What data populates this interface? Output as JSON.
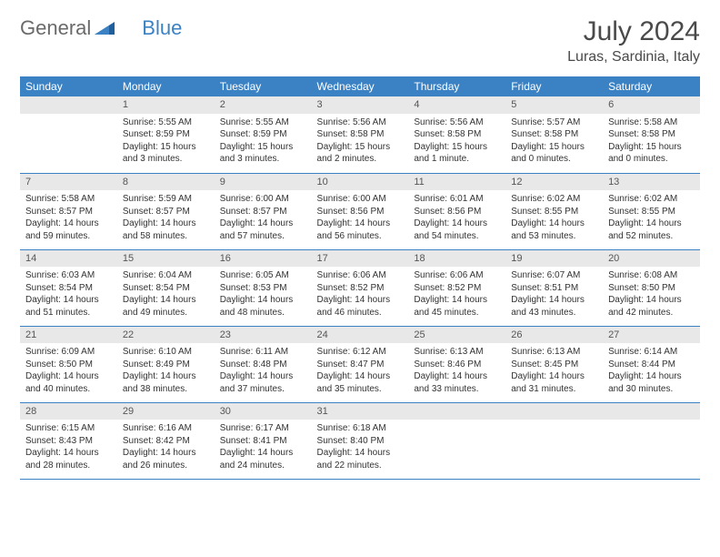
{
  "brand": {
    "part1": "General",
    "part2": "Blue"
  },
  "title": "July 2024",
  "location": "Luras, Sardinia, Italy",
  "colors": {
    "header_bg": "#3b82c4",
    "header_text": "#ffffff",
    "daynum_bg": "#e8e8e8",
    "border": "#3b82c4",
    "text": "#333333",
    "brand_gray": "#6a6a6a",
    "brand_blue": "#3b82c4"
  },
  "weekdays": [
    "Sunday",
    "Monday",
    "Tuesday",
    "Wednesday",
    "Thursday",
    "Friday",
    "Saturday"
  ],
  "weeks": [
    [
      {
        "n": "",
        "lines": []
      },
      {
        "n": "1",
        "lines": [
          "Sunrise: 5:55 AM",
          "Sunset: 8:59 PM",
          "Daylight: 15 hours and 3 minutes."
        ]
      },
      {
        "n": "2",
        "lines": [
          "Sunrise: 5:55 AM",
          "Sunset: 8:59 PM",
          "Daylight: 15 hours and 3 minutes."
        ]
      },
      {
        "n": "3",
        "lines": [
          "Sunrise: 5:56 AM",
          "Sunset: 8:58 PM",
          "Daylight: 15 hours and 2 minutes."
        ]
      },
      {
        "n": "4",
        "lines": [
          "Sunrise: 5:56 AM",
          "Sunset: 8:58 PM",
          "Daylight: 15 hours and 1 minute."
        ]
      },
      {
        "n": "5",
        "lines": [
          "Sunrise: 5:57 AM",
          "Sunset: 8:58 PM",
          "Daylight: 15 hours and 0 minutes."
        ]
      },
      {
        "n": "6",
        "lines": [
          "Sunrise: 5:58 AM",
          "Sunset: 8:58 PM",
          "Daylight: 15 hours and 0 minutes."
        ]
      }
    ],
    [
      {
        "n": "7",
        "lines": [
          "Sunrise: 5:58 AM",
          "Sunset: 8:57 PM",
          "Daylight: 14 hours and 59 minutes."
        ]
      },
      {
        "n": "8",
        "lines": [
          "Sunrise: 5:59 AM",
          "Sunset: 8:57 PM",
          "Daylight: 14 hours and 58 minutes."
        ]
      },
      {
        "n": "9",
        "lines": [
          "Sunrise: 6:00 AM",
          "Sunset: 8:57 PM",
          "Daylight: 14 hours and 57 minutes."
        ]
      },
      {
        "n": "10",
        "lines": [
          "Sunrise: 6:00 AM",
          "Sunset: 8:56 PM",
          "Daylight: 14 hours and 56 minutes."
        ]
      },
      {
        "n": "11",
        "lines": [
          "Sunrise: 6:01 AM",
          "Sunset: 8:56 PM",
          "Daylight: 14 hours and 54 minutes."
        ]
      },
      {
        "n": "12",
        "lines": [
          "Sunrise: 6:02 AM",
          "Sunset: 8:55 PM",
          "Daylight: 14 hours and 53 minutes."
        ]
      },
      {
        "n": "13",
        "lines": [
          "Sunrise: 6:02 AM",
          "Sunset: 8:55 PM",
          "Daylight: 14 hours and 52 minutes."
        ]
      }
    ],
    [
      {
        "n": "14",
        "lines": [
          "Sunrise: 6:03 AM",
          "Sunset: 8:54 PM",
          "Daylight: 14 hours and 51 minutes."
        ]
      },
      {
        "n": "15",
        "lines": [
          "Sunrise: 6:04 AM",
          "Sunset: 8:54 PM",
          "Daylight: 14 hours and 49 minutes."
        ]
      },
      {
        "n": "16",
        "lines": [
          "Sunrise: 6:05 AM",
          "Sunset: 8:53 PM",
          "Daylight: 14 hours and 48 minutes."
        ]
      },
      {
        "n": "17",
        "lines": [
          "Sunrise: 6:06 AM",
          "Sunset: 8:52 PM",
          "Daylight: 14 hours and 46 minutes."
        ]
      },
      {
        "n": "18",
        "lines": [
          "Sunrise: 6:06 AM",
          "Sunset: 8:52 PM",
          "Daylight: 14 hours and 45 minutes."
        ]
      },
      {
        "n": "19",
        "lines": [
          "Sunrise: 6:07 AM",
          "Sunset: 8:51 PM",
          "Daylight: 14 hours and 43 minutes."
        ]
      },
      {
        "n": "20",
        "lines": [
          "Sunrise: 6:08 AM",
          "Sunset: 8:50 PM",
          "Daylight: 14 hours and 42 minutes."
        ]
      }
    ],
    [
      {
        "n": "21",
        "lines": [
          "Sunrise: 6:09 AM",
          "Sunset: 8:50 PM",
          "Daylight: 14 hours and 40 minutes."
        ]
      },
      {
        "n": "22",
        "lines": [
          "Sunrise: 6:10 AM",
          "Sunset: 8:49 PM",
          "Daylight: 14 hours and 38 minutes."
        ]
      },
      {
        "n": "23",
        "lines": [
          "Sunrise: 6:11 AM",
          "Sunset: 8:48 PM",
          "Daylight: 14 hours and 37 minutes."
        ]
      },
      {
        "n": "24",
        "lines": [
          "Sunrise: 6:12 AM",
          "Sunset: 8:47 PM",
          "Daylight: 14 hours and 35 minutes."
        ]
      },
      {
        "n": "25",
        "lines": [
          "Sunrise: 6:13 AM",
          "Sunset: 8:46 PM",
          "Daylight: 14 hours and 33 minutes."
        ]
      },
      {
        "n": "26",
        "lines": [
          "Sunrise: 6:13 AM",
          "Sunset: 8:45 PM",
          "Daylight: 14 hours and 31 minutes."
        ]
      },
      {
        "n": "27",
        "lines": [
          "Sunrise: 6:14 AM",
          "Sunset: 8:44 PM",
          "Daylight: 14 hours and 30 minutes."
        ]
      }
    ],
    [
      {
        "n": "28",
        "lines": [
          "Sunrise: 6:15 AM",
          "Sunset: 8:43 PM",
          "Daylight: 14 hours and 28 minutes."
        ]
      },
      {
        "n": "29",
        "lines": [
          "Sunrise: 6:16 AM",
          "Sunset: 8:42 PM",
          "Daylight: 14 hours and 26 minutes."
        ]
      },
      {
        "n": "30",
        "lines": [
          "Sunrise: 6:17 AM",
          "Sunset: 8:41 PM",
          "Daylight: 14 hours and 24 minutes."
        ]
      },
      {
        "n": "31",
        "lines": [
          "Sunrise: 6:18 AM",
          "Sunset: 8:40 PM",
          "Daylight: 14 hours and 22 minutes."
        ]
      },
      {
        "n": "",
        "lines": []
      },
      {
        "n": "",
        "lines": []
      },
      {
        "n": "",
        "lines": []
      }
    ]
  ]
}
